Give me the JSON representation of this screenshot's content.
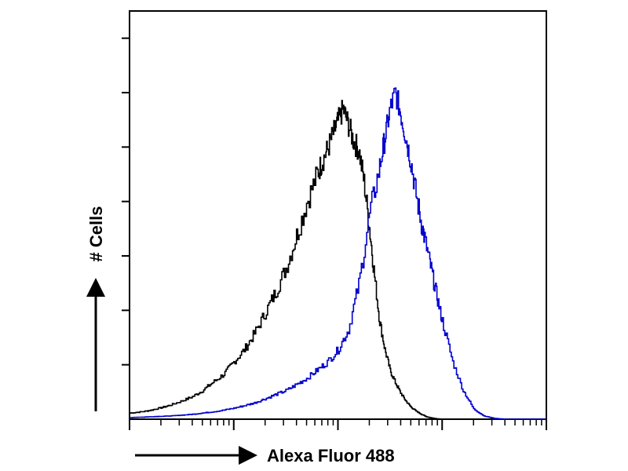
{
  "chart_data": {
    "type": "line",
    "title": "",
    "xlabel": "Alexa Fluor 488",
    "ylabel": "# Cells",
    "x_scale": "log",
    "xlim": [
      1,
      10000
    ],
    "ylim": [
      0,
      100
    ],
    "grid": false,
    "legend": "none",
    "series": [
      {
        "color": "#000000",
        "x": [
          1,
          1.3,
          1.6,
          2,
          2.5,
          3.2,
          4,
          5,
          6.3,
          8,
          10,
          12.6,
          15.8,
          20,
          25,
          31.6,
          40,
          50,
          63,
          70,
          79,
          90,
          100,
          112,
          126,
          141,
          158,
          178,
          200,
          224,
          251,
          282,
          316,
          355,
          398,
          447,
          501,
          562,
          631,
          708,
          794,
          891,
          1000,
          1259,
          1585,
          2000
        ],
        "y": [
          1.5,
          1.8,
          2.2,
          2.8,
          3.5,
          4.5,
          5.5,
          7,
          9,
          11,
          14,
          17,
          21,
          26,
          31,
          37,
          45,
          53,
          60,
          63,
          66,
          70,
          73,
          76,
          72,
          68,
          66,
          58,
          47,
          35,
          24,
          17,
          12,
          9,
          6.5,
          4.5,
          3,
          2,
          1.2,
          0.6,
          0.3,
          0.1,
          0,
          0,
          0,
          0
        ]
      },
      {
        "color": "#0000cc",
        "x": [
          1,
          1.3,
          1.6,
          2,
          2.5,
          3.2,
          4,
          5,
          6.3,
          8,
          10,
          12.6,
          15.8,
          20,
          25,
          31.6,
          40,
          50,
          63,
          79,
          100,
          126,
          158,
          200,
          251,
          282,
          316,
          355,
          398,
          447,
          501,
          562,
          631,
          708,
          794,
          891,
          1000,
          1259,
          1585,
          2000,
          2512,
          3162,
          3981,
          5012,
          6310,
          10000
        ],
        "y": [
          0.4,
          0.5,
          0.6,
          0.7,
          0.8,
          1,
          1.2,
          1.5,
          1.8,
          2.2,
          2.7,
          3.3,
          4,
          5,
          6,
          7,
          8.5,
          10,
          12,
          14,
          17,
          22,
          33,
          50,
          62,
          69,
          76,
          80,
          75,
          69,
          63,
          55,
          48,
          42,
          36,
          30,
          24,
          14,
          7,
          2.5,
          0.8,
          0.2,
          0,
          0,
          0,
          0
        ]
      }
    ]
  }
}
